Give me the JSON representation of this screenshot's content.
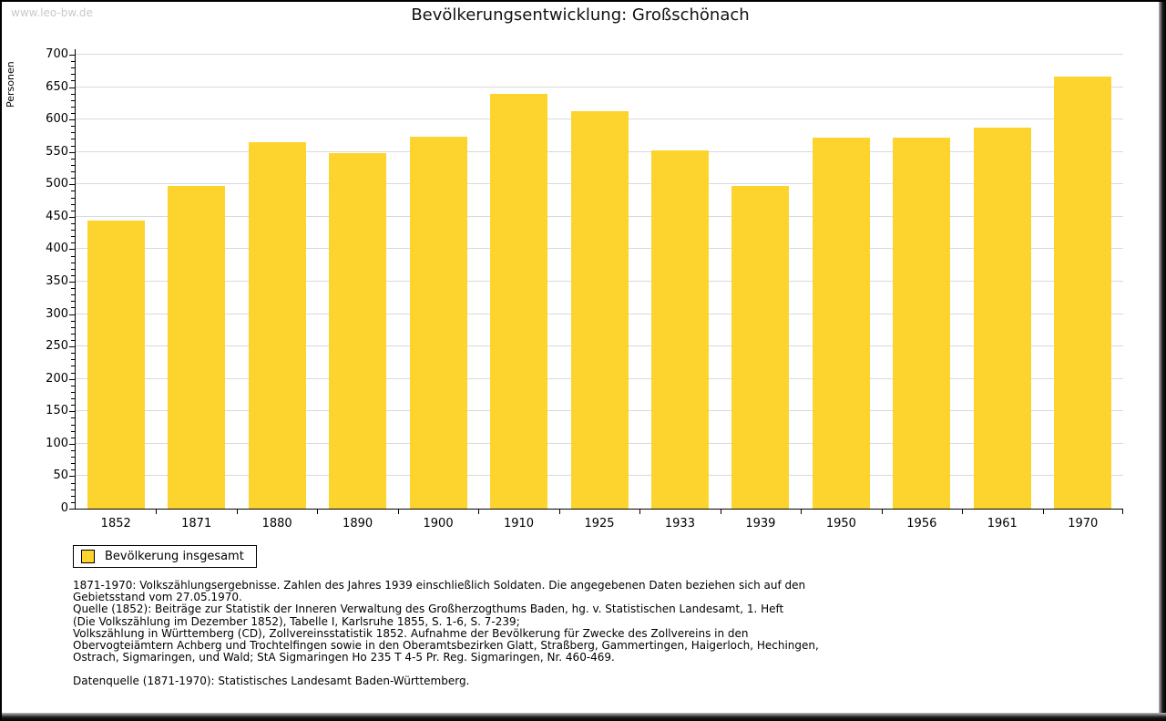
{
  "watermark": "www.leo-bw.de",
  "title": "Bevölkerungsentwicklung: Großschönach",
  "legend": {
    "label": "Bevölkerung insgesamt",
    "swatch_color": "#fcd42d"
  },
  "chart_data": {
    "type": "bar",
    "title": "Bevölkerungsentwicklung: Großschönach",
    "xlabel": "",
    "ylabel": "Personen",
    "categories": [
      "1852",
      "1871",
      "1880",
      "1890",
      "1900",
      "1910",
      "1925",
      "1933",
      "1939",
      "1950",
      "1956",
      "1961",
      "1970"
    ],
    "series": [
      {
        "name": "Bevölkerung insgesamt",
        "values": [
          444,
          497,
          565,
          548,
          573,
          639,
          613,
          552,
          497,
          572,
          572,
          587,
          666
        ]
      }
    ],
    "ylim": [
      0,
      700
    ],
    "ytick_step": 50,
    "minor_tick_step": 10,
    "grid": "horizontal",
    "bar_color": "#fcd42d",
    "gridline_color": "#d9d9d9",
    "legend_position": "bottom-left"
  },
  "footnotes": {
    "lines": [
      "1871-1970: Volkszählungsergebnisse. Zahlen des Jahres 1939 einschließlich Soldaten. Die angegebenen Daten beziehen sich auf den",
      "Gebietsstand vom 27.05.1970.",
      "Quelle (1852): Beiträge zur Statistik der Inneren Verwaltung des Großherzogthums Baden, hg. v. Statistischen Landesamt, 1. Heft",
      "(Die Volkszählung im Dezember 1852), Tabelle I, Karlsruhe 1855, S. 1-6, S. 7-239;",
      "Volkszählung in Württemberg (CD), Zollvereinsstatistik 1852. Aufnahme der Bevölkerung für Zwecke des Zollvereins in den",
      "Obervogteiämtern Achberg und Trochtelfingen sowie in den Oberamtsbezirken Glatt, Straßberg, Gammertingen, Haigerloch, Hechingen,",
      "Ostrach, Sigmaringen, und Wald; StA Sigmaringen Ho 235 T 4-5 Pr. Reg. Sigmaringen, Nr. 460-469."
    ],
    "datasource": "Datenquelle (1871-1970): Statistisches Landesamt Baden-Württemberg."
  },
  "colors": {
    "bar": "#fcd42d",
    "gridline": "#d9d9d9",
    "axis": "#000000",
    "watermark_text": "#c9c9c9",
    "frame": "#000000"
  }
}
